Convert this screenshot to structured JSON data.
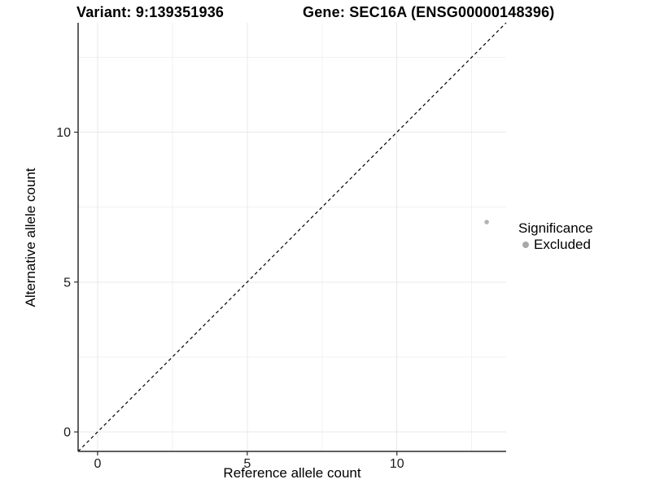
{
  "titles": {
    "left": "Variant: 9:139351936",
    "right": "Gene: SEC16A (ENSG00000148396)"
  },
  "axes": {
    "x": {
      "label": "Reference allele count"
    },
    "y": {
      "label": "Alternative allele count"
    }
  },
  "legend": {
    "title": "Significance",
    "items": [
      {
        "label": "Excluded",
        "color": "#a8a8a8"
      }
    ]
  },
  "chart_data": {
    "type": "scatter",
    "title_left": "Variant: 9:139351936",
    "title_right": "Gene: SEC16A (ENSG00000148396)",
    "xlabel": "Reference allele count",
    "ylabel": "Alternative allele count",
    "xlim": [
      -0.65,
      13.65
    ],
    "ylim": [
      -0.65,
      13.65
    ],
    "xticks": [
      0,
      5,
      10
    ],
    "yticks": [
      0,
      5,
      10
    ],
    "minor_ticks": [
      2.5,
      7.5,
      12.5
    ],
    "grid": true,
    "legend_position": "right",
    "points": [
      {
        "x": 13,
        "y": 7,
        "series": "Excluded"
      }
    ],
    "abline": {
      "slope": 1,
      "intercept": 0,
      "style": "dashed"
    },
    "colors": {
      "point": "#b3b3b3",
      "legend_dot": "#a8a8a8",
      "grid_major": "#e8e8e8",
      "grid_minor": "#f1f1f1",
      "axis": "#2b2b2b",
      "identity_line": "#000000",
      "tick": "#2b2b2b"
    }
  }
}
